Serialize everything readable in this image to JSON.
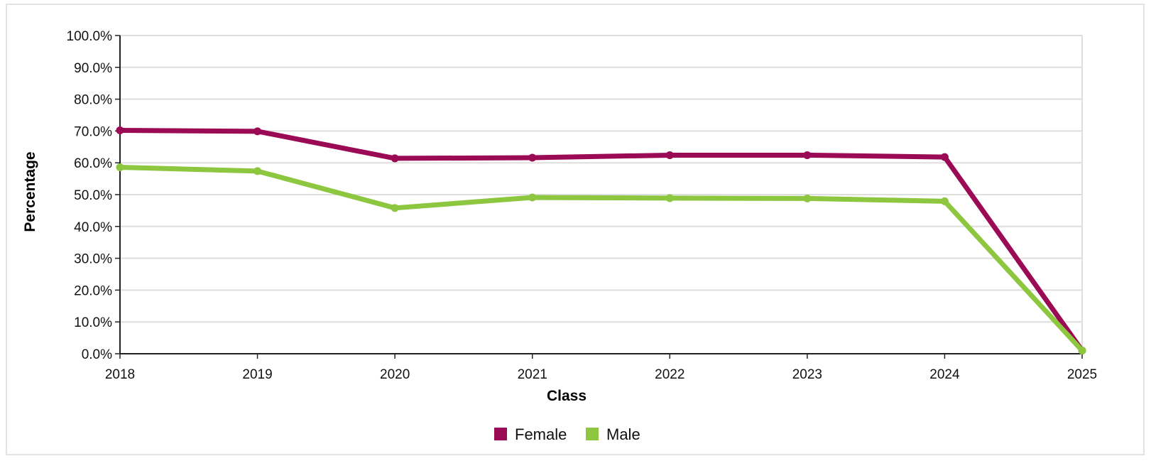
{
  "chart_data": {
    "type": "line",
    "xlabel": "Class",
    "ylabel": "Percentage",
    "categories": [
      "2018",
      "2019",
      "2020",
      "2021",
      "2022",
      "2023",
      "2024",
      "2025"
    ],
    "ylim": [
      0,
      100
    ],
    "yticks": [
      "0.0%",
      "10.0%",
      "20.0%",
      "30.0%",
      "40.0%",
      "50.0%",
      "60.0%",
      "70.0%",
      "80.0%",
      "90.0%",
      "100.0%"
    ],
    "grid": true,
    "legend_position": "bottom-center",
    "series": [
      {
        "name": "Female",
        "color": "#9b0a55",
        "values": [
          70.2,
          69.9,
          61.4,
          61.6,
          62.4,
          62.4,
          61.8,
          1.0
        ]
      },
      {
        "name": "Male",
        "color": "#8dc63f",
        "values": [
          58.6,
          57.4,
          45.8,
          49.1,
          48.9,
          48.8,
          47.9,
          1.0
        ]
      }
    ]
  }
}
